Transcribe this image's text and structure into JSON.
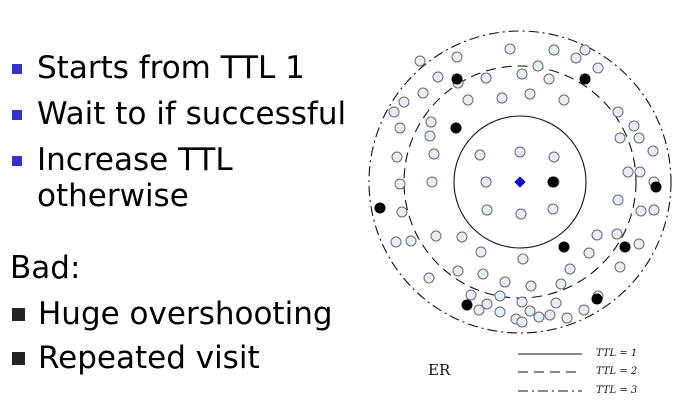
{
  "slide": {
    "bullets": [
      "Starts from TTL 1",
      "Wait to if successful",
      "Increase TTL otherwise"
    ],
    "bad_heading": "Bad:",
    "bad_bullets": [
      "Huge overshooting",
      "Repeated visit"
    ]
  },
  "diagram": {
    "center_label": "ER",
    "legend": [
      {
        "label": "TTL = 1",
        "style": "solid"
      },
      {
        "label": "TTL = 2",
        "style": "dashed"
      },
      {
        "label": "TTL = 3",
        "style": "dash-dot"
      }
    ]
  },
  "colors": {
    "bullet_blue": "#3333cc",
    "center_node": "#0000cc",
    "node_fill": "#e8eef7",
    "node_stroke": "#6a6a6a",
    "filled_node": "#000000"
  }
}
